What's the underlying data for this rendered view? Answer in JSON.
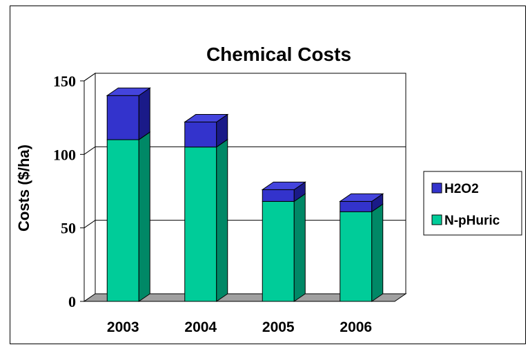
{
  "chart_data": {
    "type": "bar",
    "stacked": true,
    "three_d": true,
    "title": "Chemical Costs",
    "xlabel": "",
    "ylabel": "Costs ($/ha)",
    "categories": [
      "2003",
      "2004",
      "2005",
      "2006"
    ],
    "ylim": [
      0,
      150
    ],
    "yticks": [
      0,
      50,
      100,
      150
    ],
    "grid": true,
    "legend_position": "right",
    "series": [
      {
        "name": "N-pHuric",
        "values": [
          110,
          105,
          68,
          61
        ],
        "color": "#00CC99",
        "side_color": "#008866",
        "top_color": "#33E0B0"
      },
      {
        "name": "H2O2",
        "values": [
          30,
          17,
          8,
          7
        ],
        "color": "#3333CC",
        "side_color": "#1A1A88",
        "top_color": "#4444DD"
      }
    ],
    "legend_order": [
      "H2O2",
      "N-pHuric"
    ]
  }
}
